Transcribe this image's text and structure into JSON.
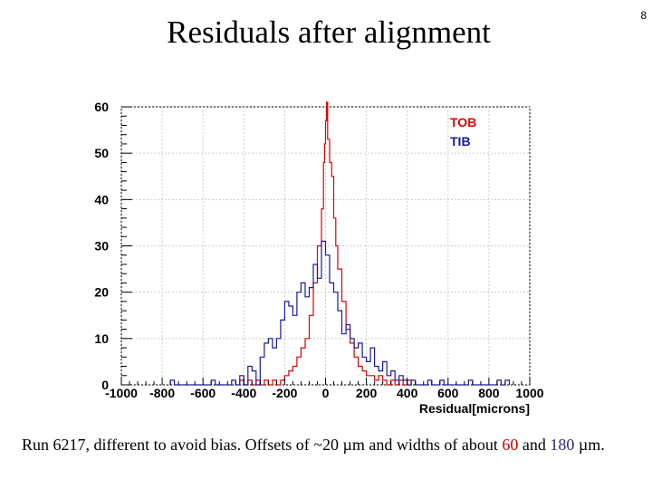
{
  "slide": {
    "title": "Residuals after alignment",
    "page_number": "8",
    "caption": {
      "prefix": "Run 6217, different to avoid bias. Offsets of ~20 µm and widths of about ",
      "red_value": "60",
      "middle": " and ",
      "blue_value": "180",
      "suffix": " µm."
    }
  },
  "colors": {
    "tob": "#e00000",
    "tib": "#1a1aa0",
    "grid": "#cccccc",
    "axis": "#000000"
  },
  "chart_data": {
    "type": "histogram",
    "title": "",
    "xlabel": "Residual[microns]",
    "ylabel": "",
    "xlim": [
      -1000,
      1000
    ],
    "ylim": [
      0,
      60
    ],
    "grid": true,
    "legend_position": "top-right",
    "x_tick_labels": [
      "-1000",
      "-800",
      "-600",
      "-400",
      "-200",
      "0",
      "200",
      "400",
      "600",
      "800",
      "1000"
    ],
    "x_ticks": [
      -1000,
      -800,
      -600,
      -400,
      -200,
      0,
      200,
      400,
      600,
      800,
      1000
    ],
    "y_tick_labels": [
      "0",
      "10",
      "20",
      "30",
      "40",
      "50",
      "60"
    ],
    "y_ticks": [
      0,
      10,
      20,
      30,
      40,
      50,
      60
    ],
    "bin_width": 20,
    "series": [
      {
        "name": "TOB",
        "color": "#e00000",
        "bins": [
          [
            -420,
            1
          ],
          [
            -400,
            0
          ],
          [
            -380,
            1
          ],
          [
            -360,
            0
          ],
          [
            -340,
            1
          ],
          [
            -320,
            0
          ],
          [
            -300,
            1
          ],
          [
            -280,
            0
          ],
          [
            -260,
            1
          ],
          [
            -240,
            0
          ],
          [
            -220,
            1
          ],
          [
            -200,
            2
          ],
          [
            -180,
            3
          ],
          [
            -160,
            4
          ],
          [
            -140,
            6
          ],
          [
            -120,
            8
          ],
          [
            -100,
            10
          ],
          [
            -80,
            15
          ],
          [
            -60,
            22
          ],
          [
            -40,
            30
          ],
          [
            -20,
            38
          ],
          [
            -10,
            48
          ],
          [
            -5,
            52
          ],
          [
            0,
            57
          ],
          [
            5,
            61
          ],
          [
            10,
            53
          ],
          [
            20,
            48
          ],
          [
            30,
            45
          ],
          [
            40,
            36
          ],
          [
            50,
            30
          ],
          [
            60,
            25
          ],
          [
            80,
            18
          ],
          [
            100,
            12
          ],
          [
            120,
            9
          ],
          [
            140,
            6
          ],
          [
            160,
            4
          ],
          [
            180,
            3
          ],
          [
            200,
            2
          ],
          [
            220,
            2
          ],
          [
            240,
            1
          ],
          [
            260,
            2
          ],
          [
            280,
            1
          ],
          [
            300,
            0
          ],
          [
            320,
            1
          ],
          [
            340,
            0
          ],
          [
            360,
            1
          ],
          [
            380,
            0
          ],
          [
            400,
            1
          ]
        ]
      },
      {
        "name": "TIB",
        "color": "#1a1aa0",
        "bins": [
          [
            -760,
            1
          ],
          [
            -560,
            1
          ],
          [
            -460,
            1
          ],
          [
            -420,
            2
          ],
          [
            -380,
            4
          ],
          [
            -360,
            3
          ],
          [
            -320,
            6
          ],
          [
            -300,
            9
          ],
          [
            -280,
            10
          ],
          [
            -260,
            8
          ],
          [
            -240,
            10
          ],
          [
            -220,
            14
          ],
          [
            -200,
            18
          ],
          [
            -180,
            17
          ],
          [
            -160,
            15
          ],
          [
            -140,
            20
          ],
          [
            -120,
            22
          ],
          [
            -100,
            19
          ],
          [
            -80,
            21
          ],
          [
            -60,
            26
          ],
          [
            -40,
            23
          ],
          [
            -20,
            31
          ],
          [
            0,
            28
          ],
          [
            20,
            22
          ],
          [
            40,
            20
          ],
          [
            60,
            16
          ],
          [
            80,
            11
          ],
          [
            100,
            13
          ],
          [
            120,
            10
          ],
          [
            140,
            8
          ],
          [
            160,
            9
          ],
          [
            180,
            6
          ],
          [
            200,
            5
          ],
          [
            220,
            8
          ],
          [
            240,
            4
          ],
          [
            260,
            3
          ],
          [
            280,
            5
          ],
          [
            300,
            2
          ],
          [
            320,
            3
          ],
          [
            340,
            1
          ],
          [
            360,
            2
          ],
          [
            380,
            1
          ],
          [
            420,
            1
          ],
          [
            500,
            1
          ],
          [
            560,
            1
          ],
          [
            700,
            1
          ],
          [
            840,
            1
          ],
          [
            880,
            1
          ]
        ]
      }
    ]
  }
}
